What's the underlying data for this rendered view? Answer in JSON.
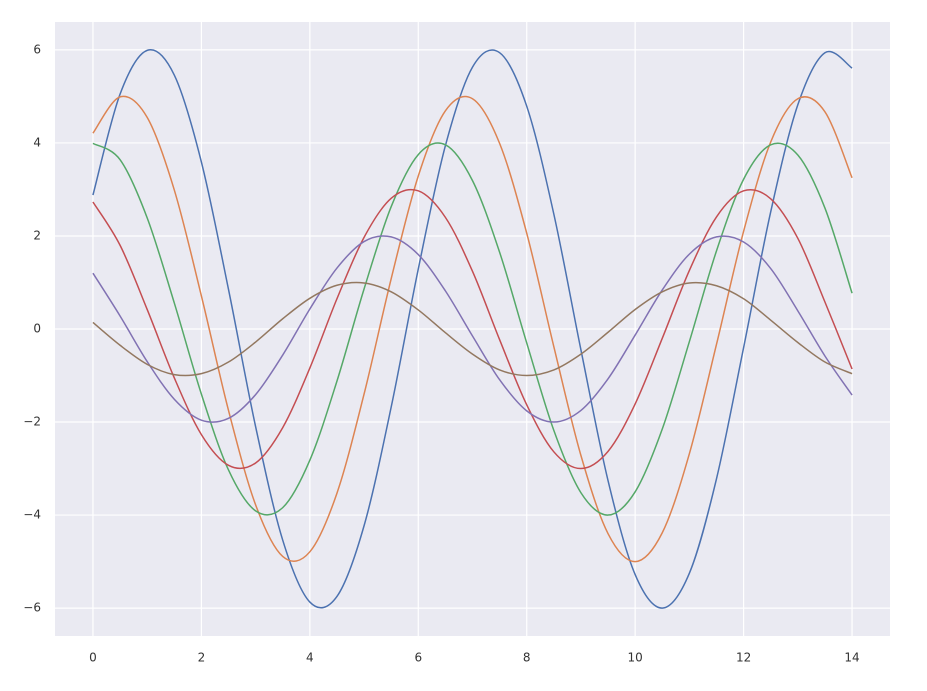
{
  "chart_data": {
    "type": "line",
    "x": [
      0,
      0.5,
      1,
      1.5,
      2,
      2.5,
      3,
      3.5,
      4,
      4.5,
      5,
      5.5,
      6,
      6.5,
      7,
      7.5,
      8,
      8.5,
      9,
      9.5,
      10,
      10.5,
      11,
      11.5,
      12,
      12.5,
      13,
      13.5,
      14
    ],
    "series": [
      {
        "color": "#4c72b0",
        "values": [
          2.88,
          5.05,
          5.99,
          5.46,
          3.59,
          0.85,
          -2.1,
          -4.54,
          -5.87,
          -5.75,
          -4.23,
          -1.68,
          1.29,
          3.94,
          5.63,
          5.94,
          4.79,
          2.47,
          -0.45,
          -3.26,
          -5.28,
          -6.0,
          -5.25,
          -3.22,
          -0.4,
          2.52,
          4.82,
          5.94,
          5.61
        ]
      },
      {
        "color": "#dd8452",
        "values": [
          4.21,
          4.99,
          4.55,
          2.99,
          0.71,
          -1.75,
          -3.78,
          -4.89,
          -4.79,
          -3.53,
          -1.4,
          1.08,
          3.29,
          4.69,
          4.95,
          3.99,
          2.06,
          -0.38,
          -2.72,
          -4.4,
          -5.0,
          -4.38,
          -2.68,
          -0.33,
          2.1,
          4.02,
          4.95,
          4.67,
          3.25
        ]
      },
      {
        "color": "#55a868",
        "values": [
          3.99,
          3.64,
          2.39,
          0.56,
          -1.4,
          -3.03,
          -3.91,
          -3.84,
          -2.82,
          -1.12,
          0.86,
          2.63,
          3.75,
          3.96,
          3.19,
          1.65,
          -0.3,
          -2.18,
          -3.52,
          -4.0,
          -3.5,
          -2.15,
          -0.27,
          1.68,
          3.22,
          3.96,
          3.74,
          2.6,
          0.77
        ]
      },
      {
        "color": "#c44e52",
        "values": [
          2.73,
          1.8,
          0.42,
          -1.05,
          -2.27,
          -2.93,
          -2.88,
          -2.12,
          -0.84,
          0.65,
          1.97,
          2.81,
          2.97,
          2.4,
          1.24,
          -0.23,
          -1.63,
          -2.64,
          -3.0,
          -2.63,
          -1.61,
          -0.2,
          1.26,
          2.41,
          2.97,
          2.8,
          1.95,
          0.58,
          -0.86
        ]
      },
      {
        "color": "#8172b3",
        "values": [
          1.2,
          0.28,
          -0.7,
          -1.51,
          -1.96,
          -1.92,
          -1.41,
          -0.56,
          0.43,
          1.31,
          1.88,
          1.98,
          1.6,
          0.82,
          -0.15,
          -1.09,
          -1.76,
          -2.0,
          -1.75,
          -1.07,
          -0.13,
          0.84,
          1.61,
          1.98,
          1.87,
          1.3,
          0.39,
          -0.58,
          -1.42
        ]
      },
      {
        "color": "#937860",
        "values": [
          0.14,
          -0.35,
          -0.76,
          -0.98,
          -0.96,
          -0.71,
          -0.28,
          0.22,
          0.66,
          0.94,
          0.99,
          0.8,
          0.41,
          -0.08,
          -0.54,
          -0.88,
          -1.0,
          -0.88,
          -0.54,
          -0.07,
          0.42,
          0.8,
          0.99,
          0.93,
          0.65,
          0.19,
          -0.29,
          -0.71,
          -0.96
        ]
      }
    ],
    "xlim": [
      -0.7,
      14.7
    ],
    "ylim": [
      -6.6,
      6.6
    ],
    "xticks": [
      0,
      2,
      4,
      6,
      8,
      10,
      12,
      14
    ],
    "yticks": [
      {
        "value": -6,
        "label": "−6"
      },
      {
        "value": -4,
        "label": "−4"
      },
      {
        "value": -2,
        "label": "−2"
      },
      0,
      2,
      4,
      6
    ],
    "grid": true,
    "background": "#eaeaf2"
  }
}
